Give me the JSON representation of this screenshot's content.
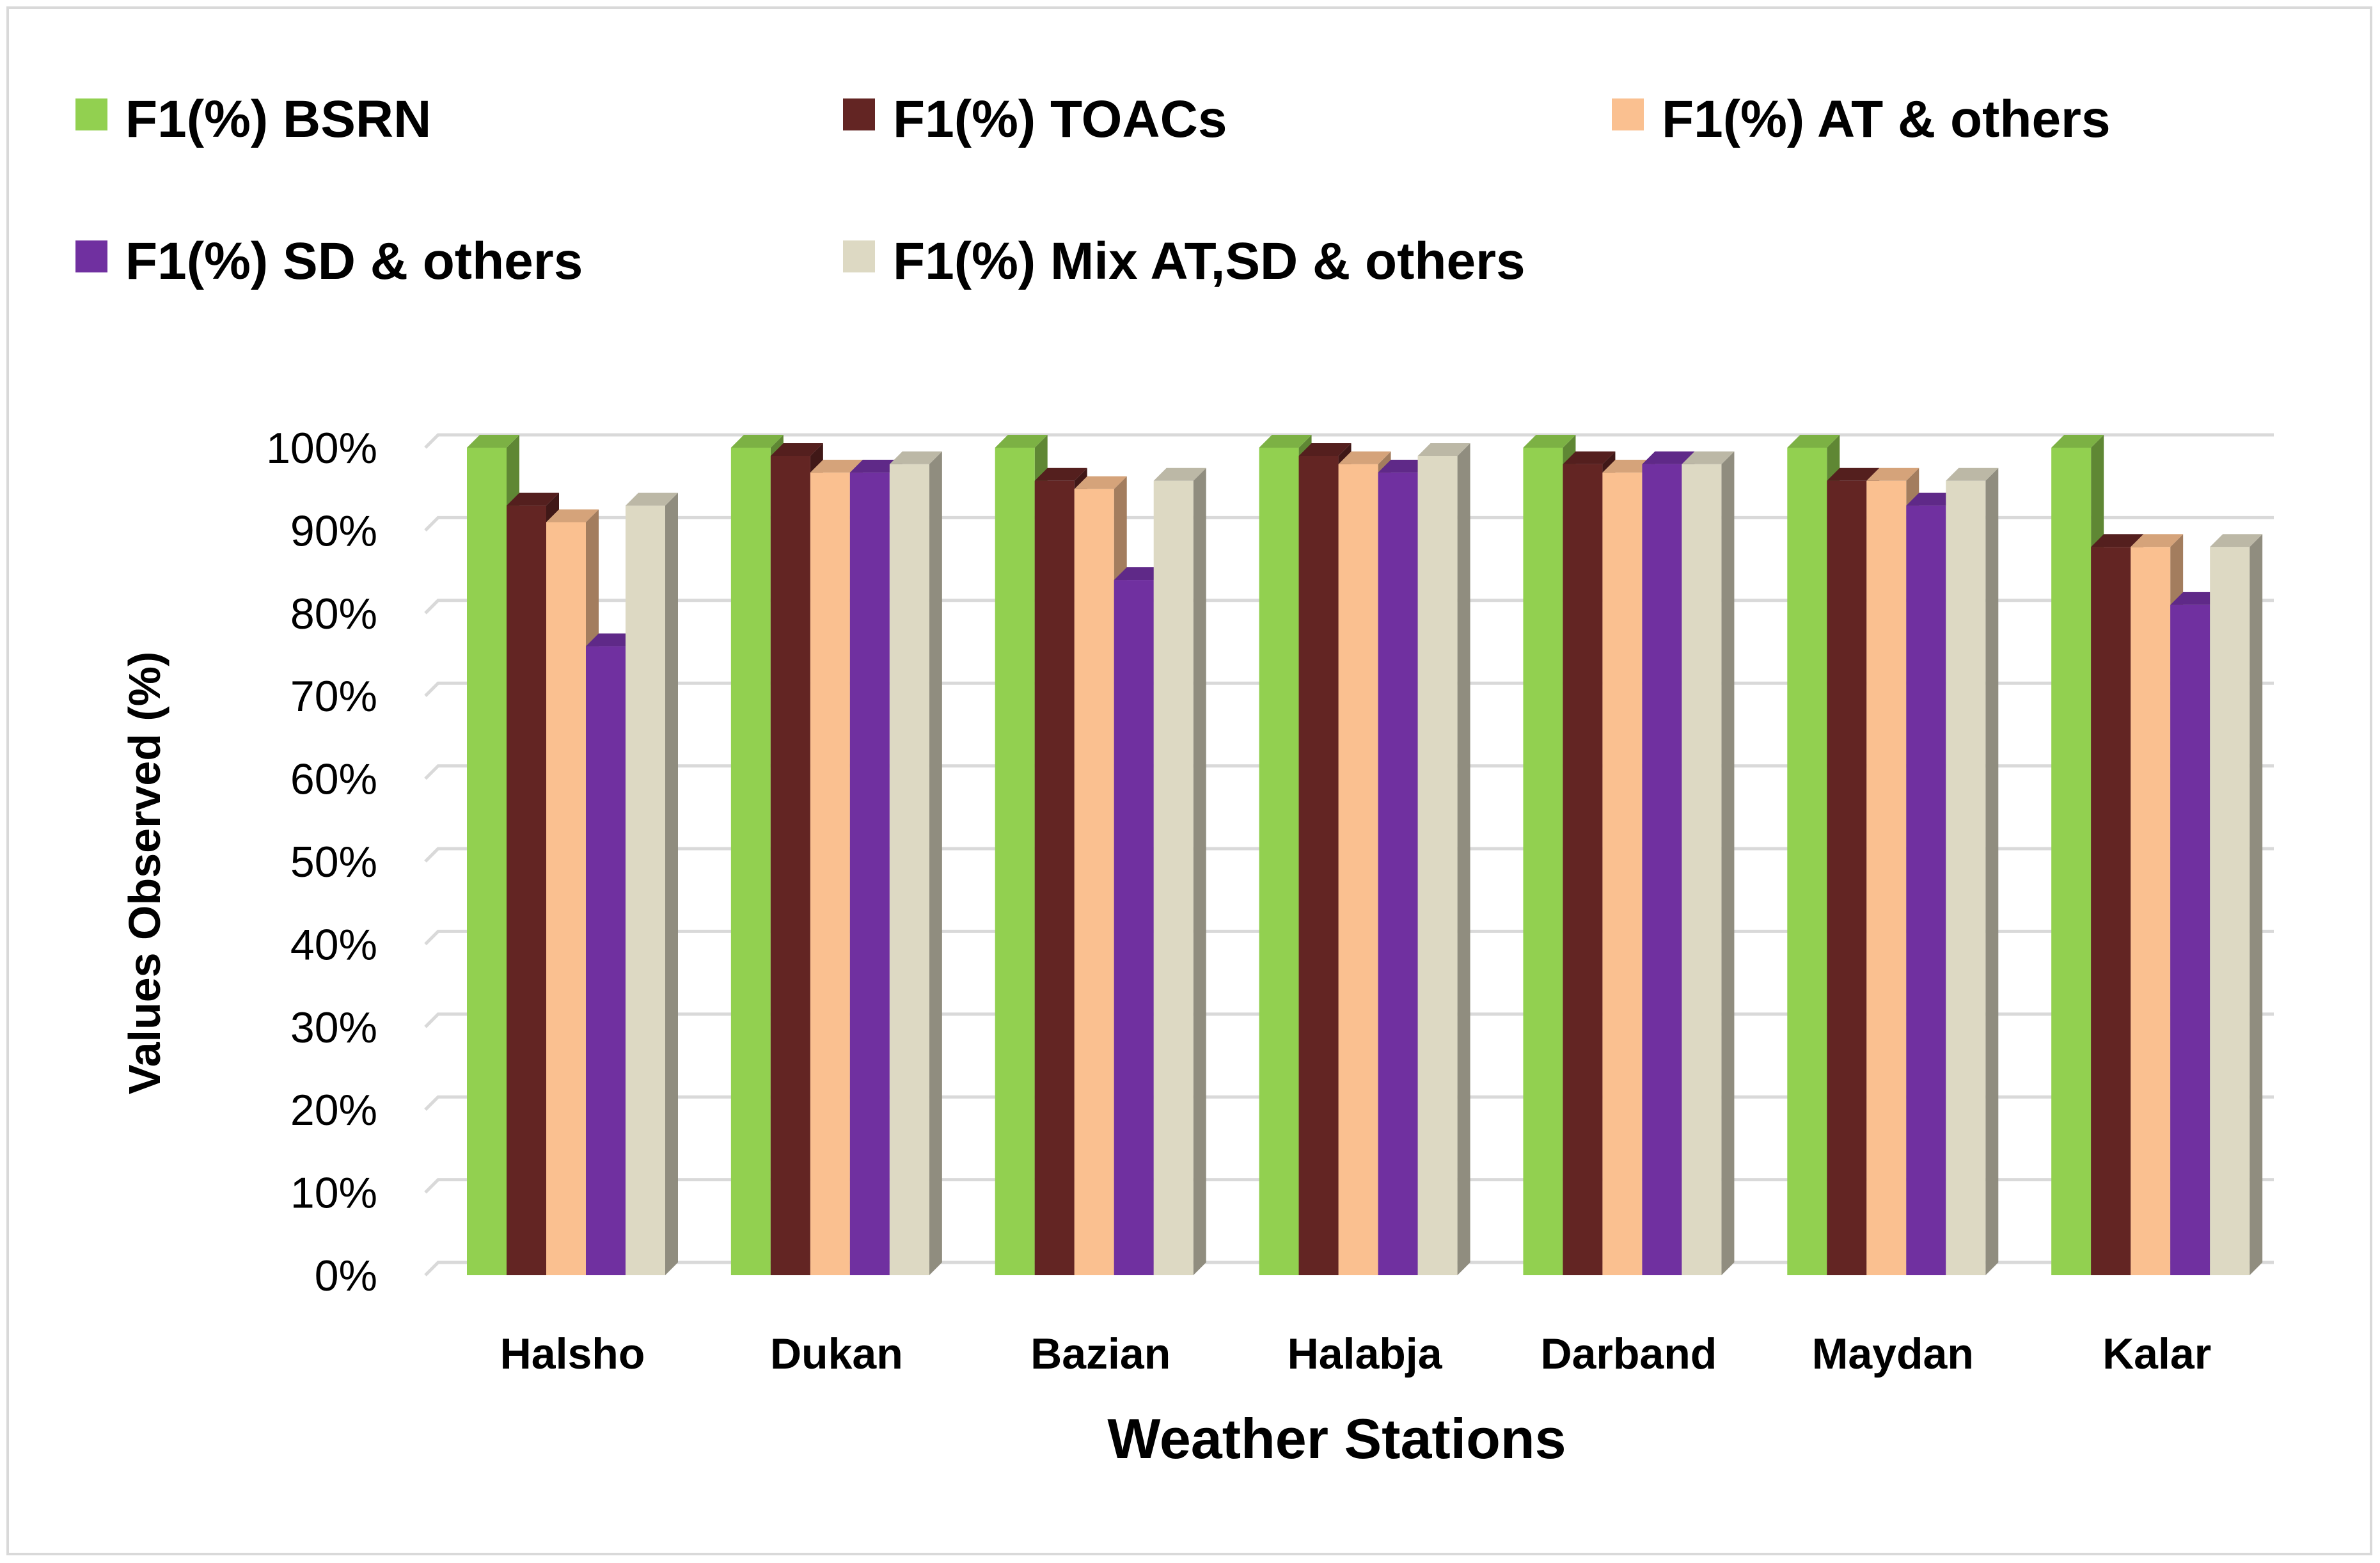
{
  "chart_data": {
    "type": "bar",
    "title": "",
    "xlabel": "Weather Stations",
    "ylabel": "Values Observed (%)",
    "ylim": [
      0,
      100
    ],
    "ytick_labels": [
      "0%",
      "10%",
      "20%",
      "30%",
      "40%",
      "50%",
      "60%",
      "70%",
      "80%",
      "90%",
      "100%"
    ],
    "grid": true,
    "legend_position": "top",
    "categories": [
      "Halsho",
      "Dukan",
      "Bazian",
      "Halabja",
      "Darband",
      "Maydan",
      "Kalar"
    ],
    "series": [
      {
        "name": "F1(%) BSRN",
        "color": "#92d050",
        "values": [
          100,
          100,
          100,
          100,
          100,
          100,
          100
        ]
      },
      {
        "name": "F1(%) TOACs",
        "color": "#632523",
        "values": [
          93,
          99,
          96,
          99,
          98,
          96,
          88
        ]
      },
      {
        "name": "F1(%) AT & others",
        "color": "#fac090",
        "values": [
          91,
          97,
          95,
          98,
          97,
          96,
          88
        ]
      },
      {
        "name": "F1(%) SD & others",
        "color": "#7030a0",
        "values": [
          76,
          97,
          84,
          97,
          98,
          93,
          81
        ]
      },
      {
        "name": "F1(%) Mix AT,SD & others",
        "color": "#ddd9c3",
        "values": [
          93,
          98,
          96,
          99,
          98,
          96,
          88
        ]
      }
    ]
  }
}
